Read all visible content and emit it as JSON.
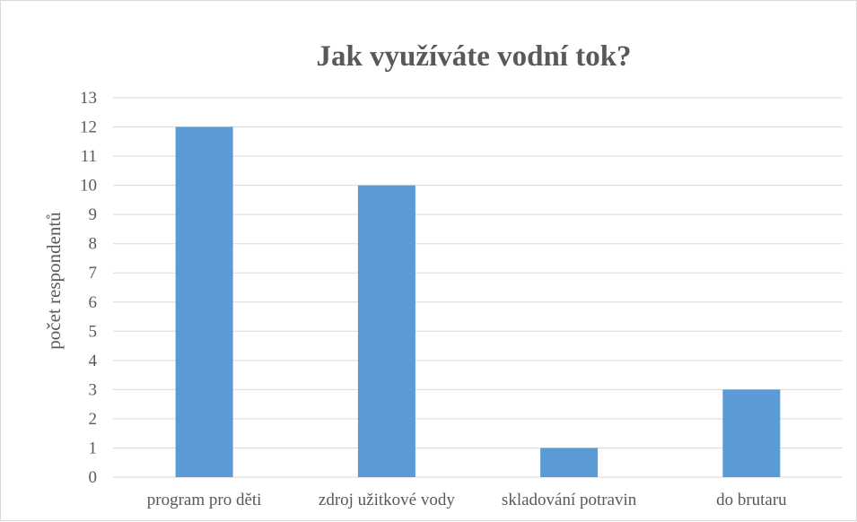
{
  "chart_data": {
    "type": "bar",
    "title": "Jak využíváte vodní tok?",
    "xlabel": "",
    "ylabel": "počet respondentů",
    "categories": [
      "program pro děti",
      "zdroj užitkové vody",
      "skladování potravin",
      "do brutaru"
    ],
    "values": [
      12,
      10,
      1,
      3
    ],
    "ylim": [
      0,
      13
    ],
    "yticks": [
      "0",
      "1",
      "2",
      "3",
      "4",
      "5",
      "6",
      "7",
      "8",
      "9",
      "10",
      "11",
      "12",
      "13"
    ],
    "grid": true,
    "bar_color": "#5b9bd5",
    "grid_color": "#d9d9d9"
  }
}
